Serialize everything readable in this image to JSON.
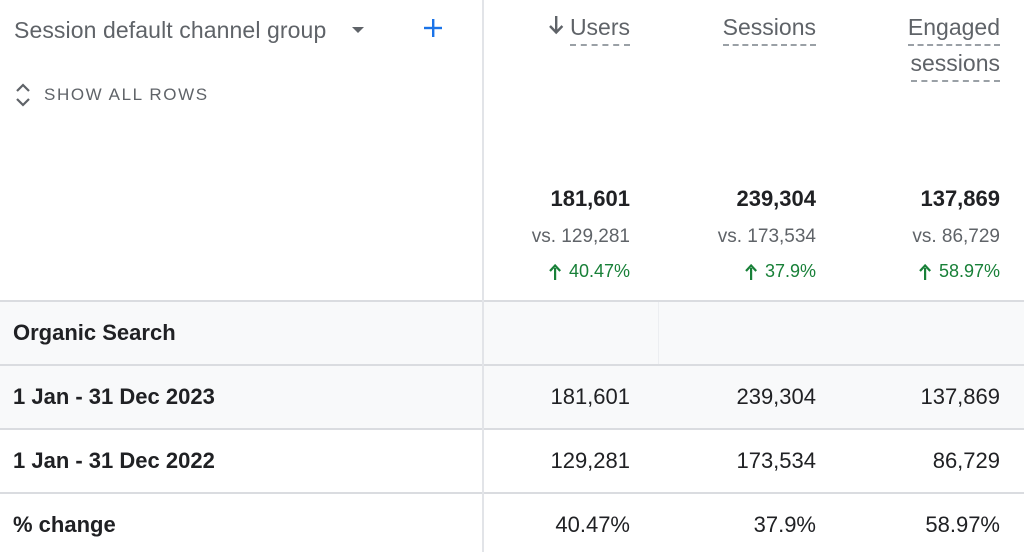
{
  "dimension": {
    "label": "Session default channel group"
  },
  "show_rows": {
    "label": "SHOW ALL ROWS"
  },
  "columns": [
    {
      "title": "Users",
      "sorted": true,
      "total": "181,601",
      "vs": "vs. 129,281",
      "change": "40.47%"
    },
    {
      "title": "Sessions",
      "total": "239,304",
      "vs": "vs. 173,534",
      "change": "37.9%"
    },
    {
      "title_line1": "Engaged",
      "title_line2": "sessions",
      "total": "137,869",
      "vs": "vs. 86,729",
      "change": "58.97%"
    }
  ],
  "rows": [
    {
      "label": "Organic Search",
      "values": [
        "",
        "",
        ""
      ]
    },
    {
      "label": "1 Jan - 31 Dec 2023",
      "values": [
        "181,601",
        "239,304",
        "137,869"
      ]
    },
    {
      "label": "1 Jan - 31 Dec 2022",
      "values": [
        "129,281",
        "173,534",
        "86,729"
      ]
    },
    {
      "label": "% change",
      "values": [
        "40.47%",
        "37.9%",
        "58.97%"
      ]
    }
  ],
  "colors": {
    "positive": "#188038",
    "accent": "#1a73e8",
    "muted": "#5f6368"
  }
}
